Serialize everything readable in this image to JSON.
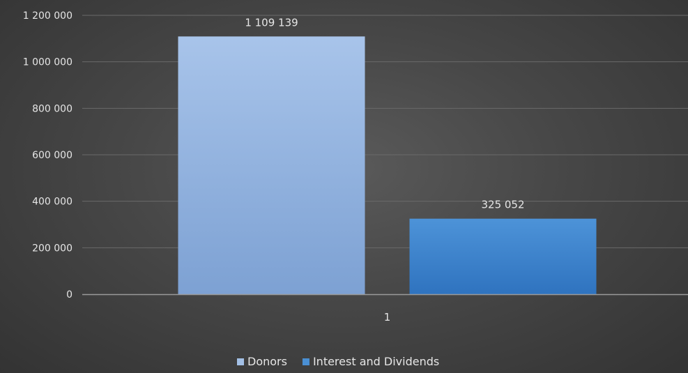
{
  "chart_data": {
    "type": "bar",
    "categories": [
      "1"
    ],
    "series": [
      {
        "name": "Donors",
        "values": [
          1109139
        ],
        "color": "#a3c0e6"
      },
      {
        "name": "Interest and Dividends",
        "values": [
          325052
        ],
        "color": "#4a8fd3"
      }
    ],
    "data_labels": [
      "1 109 139",
      "325 052"
    ],
    "y_ticks": [
      0,
      200000,
      400000,
      600000,
      800000,
      1000000,
      1200000
    ],
    "y_tick_labels": [
      "0",
      "200 000",
      "400 000",
      "600 000",
      "800 000",
      "1 000 000",
      "1 200 000"
    ],
    "ylim": [
      0,
      1200000
    ],
    "grid": true,
    "legend_position": "bottom",
    "colors": {
      "axis_text": "#e6e6e6",
      "gridline": "#6a6a6a",
      "baseline": "#9a9a9a"
    }
  }
}
